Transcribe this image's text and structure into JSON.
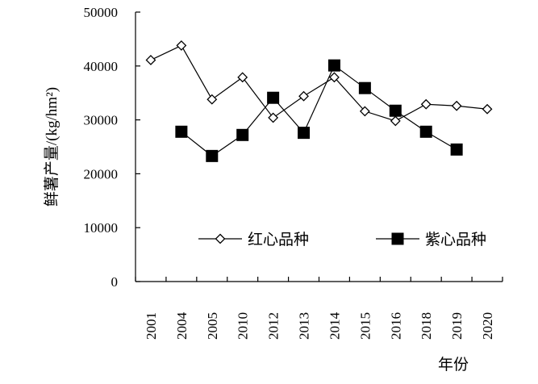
{
  "chart_data": {
    "type": "line",
    "title": "",
    "ylabel": "鲜薯产量/(kg/hm²)",
    "xlabel": "年份",
    "categories": [
      "2001",
      "2004",
      "2005",
      "2010",
      "2012",
      "2013",
      "2014",
      "2015",
      "2016",
      "2018",
      "2019",
      "2020"
    ],
    "ylim": [
      0,
      50000
    ],
    "yticks": [
      0,
      10000,
      20000,
      30000,
      40000,
      50000
    ],
    "grid": false,
    "legend_position": "inside-bottom",
    "series": [
      {
        "name": "红心品种",
        "marker": "open-diamond",
        "color": "#000000",
        "values": [
          41100,
          43800,
          33800,
          37900,
          30400,
          34400,
          37900,
          31600,
          29800,
          32900,
          32600,
          32000
        ]
      },
      {
        "name": "紫心品种",
        "marker": "filled-square",
        "color": "#000000",
        "values": [
          null,
          27800,
          23300,
          27200,
          34100,
          27600,
          40100,
          35900,
          31700,
          27800,
          24500,
          null
        ]
      }
    ]
  }
}
